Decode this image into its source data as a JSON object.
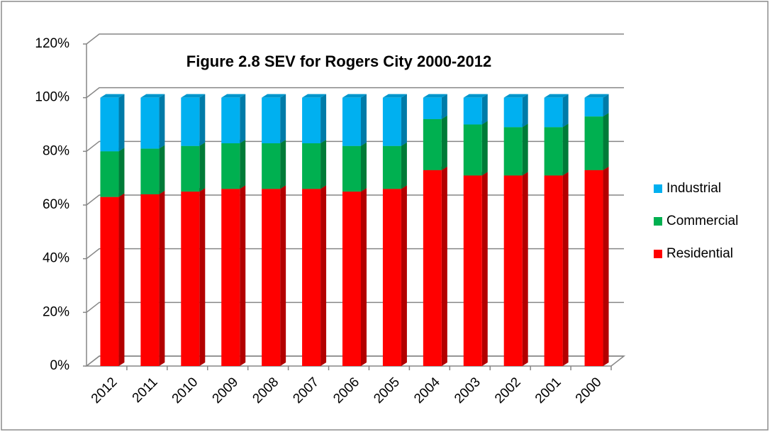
{
  "chart_data": {
    "type": "bar",
    "stacked": true,
    "three_d": true,
    "title": "Figure 2.8 SEV for Rogers City 2000-2012",
    "categories": [
      "2012",
      "2011",
      "2010",
      "2009",
      "2008",
      "2007",
      "2006",
      "2005",
      "2004",
      "2003",
      "2002",
      "2001",
      "2000"
    ],
    "series": [
      {
        "name": "Residential",
        "color": "#ff0000",
        "values": [
          63,
          64,
          65,
          66,
          66,
          66,
          65,
          66,
          73,
          71,
          71,
          71,
          73
        ]
      },
      {
        "name": "Commercial",
        "color": "#00b050",
        "values": [
          17,
          17,
          17,
          17,
          17,
          17,
          17,
          16,
          19,
          19,
          18,
          18,
          20
        ]
      },
      {
        "name": "Industrial",
        "color": "#00b0f0",
        "values": [
          20,
          19,
          18,
          17,
          17,
          17,
          18,
          18,
          8,
          10,
          11,
          11,
          7
        ]
      }
    ],
    "ylim": [
      0,
      120
    ],
    "yticks": [
      {
        "value": 0,
        "label": "0%"
      },
      {
        "value": 20,
        "label": "20%"
      },
      {
        "value": 40,
        "label": "40%"
      },
      {
        "value": 60,
        "label": "60%"
      },
      {
        "value": 80,
        "label": "80%"
      },
      {
        "value": 100,
        "label": "100%"
      },
      {
        "value": 120,
        "label": "120%"
      }
    ],
    "grid": true,
    "legend": "right"
  }
}
